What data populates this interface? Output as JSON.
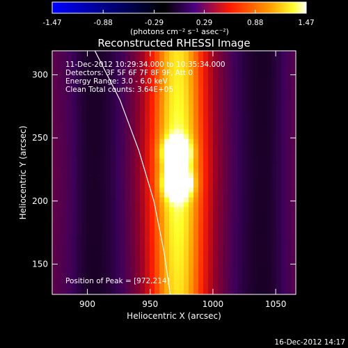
{
  "chart_data": {
    "type": "heatmap",
    "title": "Reconstructed RHESSI Image",
    "xlabel": "Heliocentric X (arcsec)",
    "ylabel": "Heliocentric Y (arcsec)",
    "xlim": [
      872,
      1066
    ],
    "ylim": [
      126,
      319
    ],
    "x_ticks": [
      900,
      950,
      1000,
      1050
    ],
    "y_ticks": [
      150,
      200,
      250,
      300
    ],
    "grid": false,
    "colorbar": {
      "position": "top",
      "range": [
        -1.47,
        1.47
      ],
      "tick_labels": [
        "-1.47",
        "-0.88",
        "-0.29",
        "0.29",
        "0.88",
        "1.47"
      ],
      "unit_label": "(photons cm⁻² s⁻¹ asec⁻²)",
      "colormap": [
        "#0000ff",
        "#000000",
        "#4b0082",
        "#ff0000",
        "#ffa500",
        "#ffff00",
        "#ffffff"
      ]
    },
    "annotations": [
      "11-Dec-2012 10:29:34.000 to 10:35:34.000",
      "Detectors: 3F 5F 6F 7F 8F 9F, Att 0",
      "Energy Range: 3.0 - 6.0 keV",
      "Clean    Total counts: 3.64E+05",
      "Position of Peak = [972,214]"
    ],
    "peak": {
      "x": 972,
      "y": 214
    },
    "sources": [
      {
        "x": 972,
        "y": 214,
        "amplitude": 1.45
      },
      {
        "x": 971,
        "y": 239,
        "amplitude": 1.25
      }
    ],
    "limb_curve": [
      {
        "x": 906,
        "y": 319
      },
      {
        "x": 926,
        "y": 280
      },
      {
        "x": 941,
        "y": 240
      },
      {
        "x": 953,
        "y": 200
      },
      {
        "x": 961,
        "y": 160
      },
      {
        "x": 966,
        "y": 126
      }
    ]
  },
  "footer": {
    "timestamp": "16-Dec-2012 14:17"
  }
}
